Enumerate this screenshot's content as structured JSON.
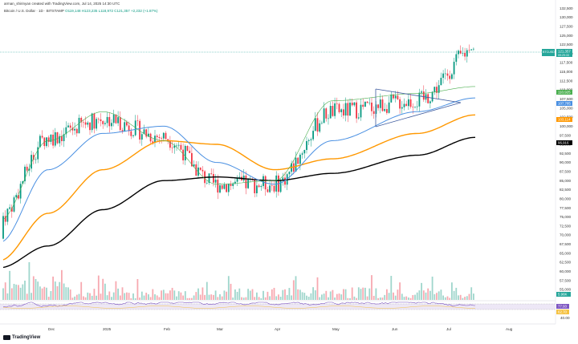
{
  "header": {
    "creator_line": "arman_shirinyan created with TradingView.com, Jul 14, 2025 14:30 UTC",
    "symbol_line": "Bitcoin / U.S. Dollar · 1D · BITSTAMP",
    "ohlc": "O119,148 H123,235 L118,972 C121,357 +2,232 (+1.87%)"
  },
  "colors": {
    "up": "#089981",
    "down": "#f23645",
    "ma20": "#4caf50",
    "ma50": "#4a90e2",
    "ma100": "#ff9800",
    "ma200": "#000000",
    "triangle": "#3d5a9e",
    "price_line": "#26a69a"
  },
  "price_axis": {
    "ticks": [
      "132,500",
      "130,000",
      "127,500",
      "125,000",
      "122,500",
      "120,000",
      "117,500",
      "115,000",
      "112,500",
      "110,000",
      "107,500",
      "105,000",
      "102,500",
      "100,000",
      "97,500",
      "95,000",
      "92,500",
      "90,000",
      "87,500",
      "85,000",
      "82,500",
      "80,000",
      "77,500",
      "75,000",
      "72,500",
      "70,000",
      "67,500",
      "65,000",
      "62,500",
      "60,000",
      "57,500",
      "55,000"
    ],
    "tags": {
      "last_symbol": "BTCUSD",
      "last_price": "121,357",
      "countdown": "09:29:33",
      "ma20": "110,925",
      "ma50": "107,785",
      "ma100": "103,114",
      "ma200": "96,916"
    }
  },
  "volume": {
    "tag": "5.96K"
  },
  "rsi": {
    "tags": [
      "77.93",
      "62.70"
    ],
    "ticks": [
      "60.00",
      "40.00"
    ]
  },
  "time_axis": {
    "labels": [
      "Dec",
      "2025",
      "Feb",
      "Mar",
      "Apr",
      "May",
      "Jun",
      "Jul",
      "Aug"
    ]
  },
  "chart_data": {
    "type": "candlestick",
    "x": [
      "2024-11",
      "2024-12",
      "2025-01",
      "2025-02",
      "2025-03",
      "2025-04",
      "2025-05",
      "2025-06",
      "2025-07-14"
    ],
    "close_approx": [
      75000,
      97000,
      102000,
      97000,
      84000,
      84000,
      104000,
      107000,
      121357
    ],
    "ylim": [
      55000,
      133000
    ],
    "series": [
      {
        "values": [
          74000,
          96000,
          104000,
          96000,
          84000,
          85000,
          107000,
          109000,
          110925
        ]
      },
      {
        "values": [
          68000,
          88000,
          98000,
          100000,
          90000,
          84000,
          96000,
          104000,
          107785
        ]
      },
      {
        "values": [
          63000,
          76000,
          88000,
          96000,
          95000,
          88000,
          91000,
          98000,
          103114
        ]
      },
      {
        "values": [
          61000,
          67000,
          77000,
          85000,
          86000,
          85000,
          87000,
          92000,
          96916
        ]
      }
    ]
  },
  "brand": {
    "name": "TradingView"
  }
}
